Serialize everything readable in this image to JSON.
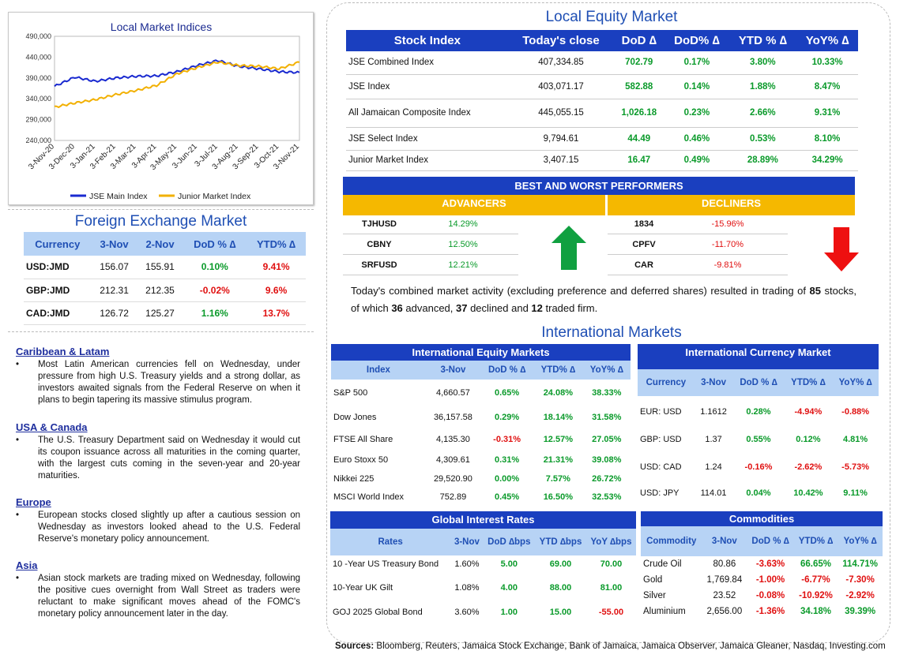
{
  "chart_data": {
    "type": "line",
    "title": "Local Market Indices",
    "x": [
      "3-Nov-20",
      "3-Dec-20",
      "3-Jan-21",
      "3-Feb-21",
      "3-Mar-21",
      "3-Apr-21",
      "3-May-21",
      "3-Jun-21",
      "3-Jul-21",
      "3-Aug-21",
      "3-Sep-21",
      "3-Oct-21",
      "3-Nov-21"
    ],
    "yticks": [
      "490,000",
      "440,000",
      "390,000",
      "340,000",
      "290,000",
      "240,000"
    ],
    "ylim": [
      240000,
      490000
    ],
    "series": [
      {
        "name": "JSE Main Index",
        "color": "#1a2ad0",
        "values": [
          370000,
          392000,
          382000,
          390000,
          394000,
          395000,
          405000,
          420000,
          432000,
          418000,
          412000,
          405000,
          403000
        ]
      },
      {
        "name": "Junior Market Index",
        "color": "#f2b000",
        "values": [
          320000,
          330000,
          338000,
          350000,
          360000,
          372000,
          400000,
          415000,
          428000,
          420000,
          418000,
          412000,
          428000
        ]
      }
    ]
  },
  "fx": {
    "title": "Foreign Exchange Market",
    "headers": [
      "Currency",
      "3-Nov",
      "2-Nov",
      "DoD % ∆",
      "YTD% ∆"
    ],
    "rows": [
      [
        "USD:JMD",
        "156.07",
        "155.91",
        "0.10%",
        "9.41%"
      ],
      [
        "GBP:JMD",
        "212.31",
        "212.35",
        "-0.02%",
        "9.6%"
      ],
      [
        "CAD:JMD",
        "126.72",
        "125.27",
        "1.16%",
        "13.7%"
      ]
    ]
  },
  "news": [
    {
      "title": "Caribbean & Latam",
      "bullet": "•",
      "text": "Most Latin American currencies fell on Wednesday, under pressure from high U.S. Treasury yields and a strong dollar, as investors awaited signals from the Federal Reserve on when it plans to begin tapering its massive stimulus program."
    },
    {
      "title": "USA & Canada",
      "bullet": "•",
      "text": "The U.S. Treasury Department said on Wednesday it would cut its coupon issuance across all maturities in the coming quarter, with the largest cuts coming in the seven-year and 20-year maturities."
    },
    {
      "title": "Europe",
      "bullet": "•",
      "text": "European stocks closed slightly up after a cautious session on Wednesday as investors looked ahead to the U.S. Federal Reserve's monetary policy announcement."
    },
    {
      "title": "Asia",
      "bullet": "•",
      "text": "Asian stock markets are trading mixed on Wednesday, following the positive cues overnight from Wall Street as traders were reluctant to make significant moves ahead of the FOMC's monetary policy announcement later in the day."
    }
  ],
  "equity": {
    "title": "Local Equity Market",
    "headers": [
      "Stock Index",
      "Today's close",
      "DoD ∆",
      "DoD% ∆",
      "YTD % ∆",
      "YoY% ∆"
    ],
    "rows": [
      [
        "JSE Combined Index",
        "407,334.85",
        "702.79",
        "0.17%",
        "3.80%",
        "10.33%"
      ],
      [
        "JSE Index",
        "403,071.17",
        "582.88",
        "0.14%",
        "1.88%",
        "8.47%"
      ],
      [
        "All Jamaican Composite Index",
        "445,055.15",
        "1,026.18",
        "0.23%",
        "2.66%",
        "9.31%"
      ],
      [
        "JSE Select Index",
        "9,794.61",
        "44.49",
        "0.46%",
        "0.53%",
        "8.10%"
      ],
      [
        "Junior Market Index",
        "3,407.15",
        "16.47",
        "0.49%",
        "28.89%",
        "34.29%"
      ]
    ]
  },
  "performers": {
    "title": "BEST AND WORST PERFORMERS",
    "advancers_label": "ADVANCERS",
    "decliners_label": "DECLINERS",
    "advancers": [
      [
        "TJHUSD",
        "14.29%"
      ],
      [
        "CBNY",
        "12.50%"
      ],
      [
        "SRFUSD",
        "12.21%"
      ]
    ],
    "decliners": [
      [
        "1834",
        "-15.96%"
      ],
      [
        "CPFV",
        "-11.70%"
      ],
      [
        "CAR",
        "-9.81%"
      ]
    ]
  },
  "summary": {
    "p1": "Today's combined market activity (excluding preference and deferred shares) resulted in trading of ",
    "n_total": "85",
    "p2": " stocks, of which ",
    "n_adv": "36",
    "p3": " advanced, ",
    "n_dec": "37",
    "p4": " declined and ",
    "n_firm": "12",
    "p5": " traded firm."
  },
  "intl_title": "International Markets",
  "intl_equity": {
    "title": "International Equity Markets",
    "headers": [
      "Index",
      "3-Nov",
      "DoD % ∆",
      "YTD% ∆",
      "YoY% ∆"
    ],
    "rows": [
      [
        "S&P 500",
        "4,660.57",
        "0.65%",
        "24.08%",
        "38.33%"
      ],
      [
        "Dow Jones",
        "36,157.58",
        "0.29%",
        "18.14%",
        "31.58%"
      ],
      [
        "FTSE All Share",
        "4,135.30",
        "-0.31%",
        "12.57%",
        "27.05%"
      ],
      [
        "Euro Stoxx 50",
        "4,309.61",
        "0.31%",
        "21.31%",
        "39.08%"
      ],
      [
        "Nikkei 225",
        "29,520.90",
        "0.00%",
        "7.57%",
        "26.72%"
      ],
      [
        "MSCI World Index",
        "752.89",
        "0.45%",
        "16.50%",
        "32.53%"
      ]
    ]
  },
  "intl_currency": {
    "title": "International Currency Market",
    "headers": [
      "Currency",
      "3-Nov",
      "DoD % ∆",
      "YTD% ∆",
      "YoY% ∆"
    ],
    "rows": [
      [
        "EUR: USD",
        "1.1612",
        "0.28%",
        "-4.94%",
        "-0.88%"
      ],
      [
        "GBP: USD",
        "1.37",
        "0.55%",
        "0.12%",
        "4.81%"
      ],
      [
        "USD: CAD",
        "1.24",
        "-0.16%",
        "-2.62%",
        "-5.73%"
      ],
      [
        "USD: JPY",
        "114.01",
        "0.04%",
        "10.42%",
        "9.11%"
      ]
    ]
  },
  "rates": {
    "title": "Global Interest Rates",
    "headers": [
      "Rates",
      "3-Nov",
      "DoD ∆bps",
      "YTD ∆bps",
      "YoY ∆bps"
    ],
    "rows": [
      [
        "10 -Year US Treasury Bond",
        "1.60%",
        "5.00",
        "69.00",
        "70.00"
      ],
      [
        "10-Year UK Gilt",
        "1.08%",
        "4.00",
        "88.00",
        "81.00"
      ],
      [
        "GOJ 2025 Global Bond",
        "3.60%",
        "1.00",
        "15.00",
        "-55.00"
      ]
    ]
  },
  "commodities": {
    "title": "Commodities",
    "headers": [
      "Commodity",
      "3-Nov",
      "DoD % ∆",
      "YTD% ∆",
      "YoY% ∆"
    ],
    "rows": [
      [
        "Crude Oil",
        "80.86",
        "-3.63%",
        "66.65%",
        "114.71%"
      ],
      [
        "Gold",
        "1,769.84",
        "-1.00%",
        "-6.77%",
        "-7.30%"
      ],
      [
        "Silver",
        "23.52",
        "-0.08%",
        "-10.92%",
        "-2.92%"
      ],
      [
        "Aluminium",
        "2,656.00",
        "-1.36%",
        "34.18%",
        "39.39%"
      ]
    ]
  },
  "sources": {
    "label": "Sources:",
    "text": " Bloomberg, Reuters, Jamaica Stock Exchange, Bank of Jamaica, Jamaica Observer, Jamaica Gleaner, Nasdaq, Investing.com"
  }
}
